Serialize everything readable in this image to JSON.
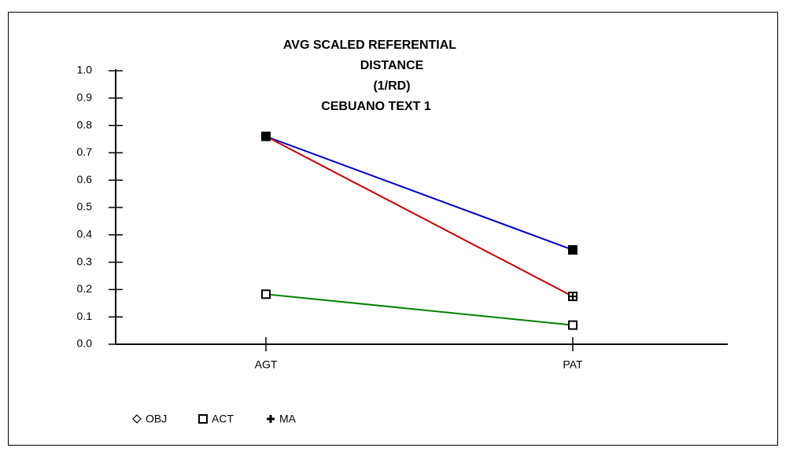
{
  "chart_data": {
    "type": "line",
    "title": [
      "AVG SCALED REFERENTIAL",
      "DISTANCE",
      "(1/RD)",
      "CEBUANO TEXT 1"
    ],
    "categories": [
      "AGT",
      "PAT"
    ],
    "series": [
      {
        "name": "OBJ",
        "color": "#0000c0",
        "marker": "diamond",
        "values": [
          0.76,
          0.345
        ]
      },
      {
        "name": "ACT",
        "color": "#c00000",
        "marker": "square",
        "values": [
          0.76,
          0.175
        ]
      },
      {
        "name": "MA",
        "color": "#008000",
        "marker": "plus",
        "values": [
          0.183,
          0.07
        ]
      }
    ],
    "ylim": [
      0,
      1
    ],
    "yticks": [
      {
        "value": 0,
        "label": "0.0"
      },
      0.1,
      0.2,
      0.3,
      0.4,
      0.5,
      0.6,
      0.7,
      0.8,
      0.9,
      {
        "value": 1,
        "label": "1.0"
      }
    ],
    "legend": "bottom"
  }
}
